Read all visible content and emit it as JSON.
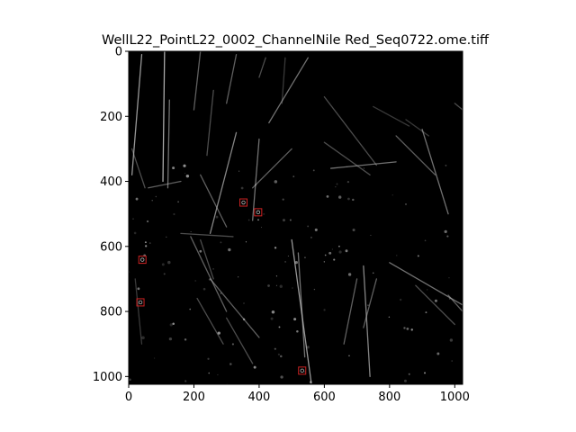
{
  "figure": {
    "title": "WellL22_PointL22_0002_ChannelNile Red_Seq0722.ome.tiff",
    "x_ticks": [
      "0",
      "200",
      "400",
      "600",
      "800",
      "1000"
    ],
    "y_ticks": [
      "0",
      "200",
      "400",
      "600",
      "800",
      "1000"
    ],
    "x_range": [
      0,
      1024
    ],
    "y_range": [
      0,
      1024
    ],
    "image_background": "#000000",
    "marker_color": "#cc2222",
    "markers": [
      {
        "x": 352,
        "y": 465
      },
      {
        "x": 397,
        "y": 495
      },
      {
        "x": 42,
        "y": 641
      },
      {
        "x": 36,
        "y": 772
      },
      {
        "x": 532,
        "y": 982
      }
    ]
  }
}
